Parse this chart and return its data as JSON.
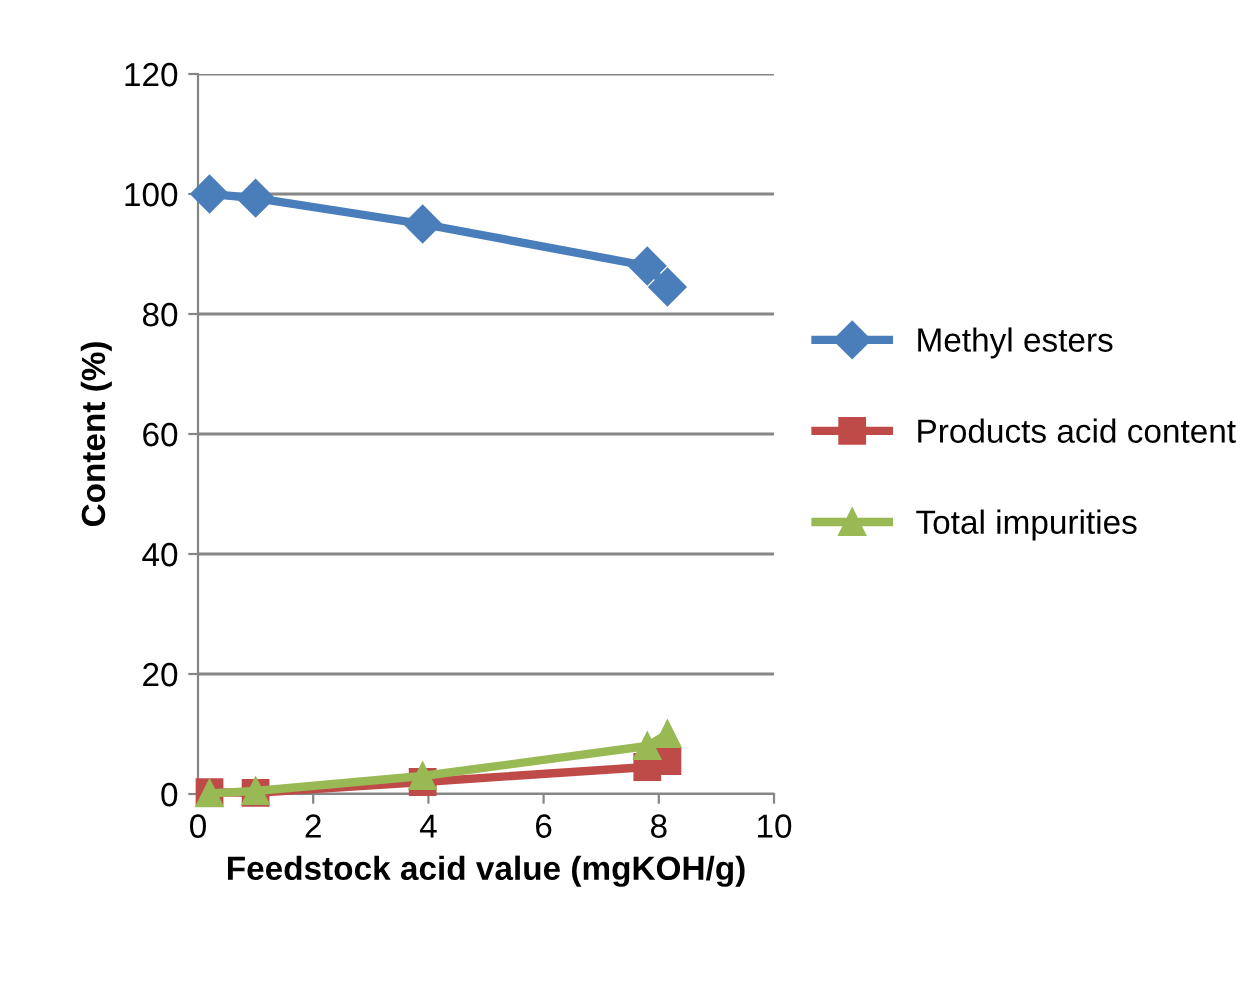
{
  "chart_data": {
    "type": "line",
    "xlabel": "Feedstock acid value (mgKOH/g)",
    "ylabel": "Content (%)",
    "xlim": [
      0,
      10
    ],
    "xticks": [
      0,
      2,
      4,
      6,
      8,
      10
    ],
    "ylim": [
      0,
      120
    ],
    "yticks": [
      0,
      20,
      40,
      60,
      80,
      100,
      120
    ],
    "grid": "y",
    "legend": "right",
    "series": [
      {
        "name": "Methyl esters",
        "color": "#4a7ebb",
        "marker": "diamond",
        "x": [
          0.2,
          1.0,
          3.9,
          7.8,
          8.15
        ],
        "values": [
          100,
          99.3,
          95,
          88,
          84.5
        ]
      },
      {
        "name": "Products acid content",
        "color": "#be4b48",
        "marker": "square",
        "x": [
          0.2,
          1.0,
          3.9,
          7.8,
          8.15
        ],
        "values": [
          0.3,
          0.2,
          2,
          4.5,
          5.5
        ]
      },
      {
        "name": "Total impurities",
        "color": "#98b954",
        "marker": "triangle",
        "x": [
          0.2,
          1.0,
          3.9,
          7.8,
          8.15
        ],
        "values": [
          0.1,
          0.5,
          3,
          8,
          10
        ]
      }
    ]
  }
}
